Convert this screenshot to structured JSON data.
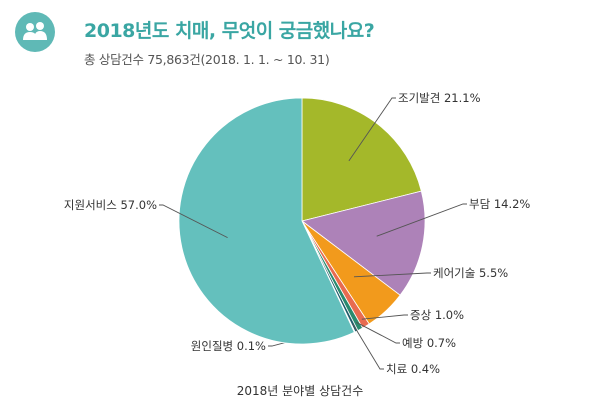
{
  "header": {
    "title": "2018년도 치매, 무엇이 궁금했나요?",
    "subtitle": "총 상담건수 75,863건(2018. 1. 1. ~ 10. 31)",
    "icon": "users-icon",
    "accent_color": "#3aa6a3"
  },
  "chart_data": {
    "type": "pie",
    "title": "2018년도 치매, 무엇이 궁금했나요?",
    "caption": "2018년 분야별 상담건수",
    "unit": "%",
    "slices": [
      {
        "name": "조기발견",
        "value": 21.1,
        "label": "조기발견 21.1%",
        "color": "#a4b82a"
      },
      {
        "name": "부담",
        "value": 14.2,
        "label": "부담 14.2%",
        "color": "#ad82b8"
      },
      {
        "name": "케어기술",
        "value": 5.5,
        "label": "케어기술 5.5%",
        "color": "#f29a1c"
      },
      {
        "name": "증상",
        "value": 1.0,
        "label": "증상 1.0%",
        "color": "#e86b50"
      },
      {
        "name": "예방",
        "value": 0.7,
        "label": "예방 0.7%",
        "color": "#2a8a6e"
      },
      {
        "name": "치료",
        "value": 0.4,
        "label": "치료 0.4%",
        "color": "#1f5c6b"
      },
      {
        "name": "원인질병",
        "value": 0.1,
        "label": "원인질병 0.1%",
        "color": "#e9e6a8"
      },
      {
        "name": "지원서비스",
        "value": 57.0,
        "label": "지원서비스 57.0%",
        "color": "#64c0bd"
      }
    ]
  }
}
